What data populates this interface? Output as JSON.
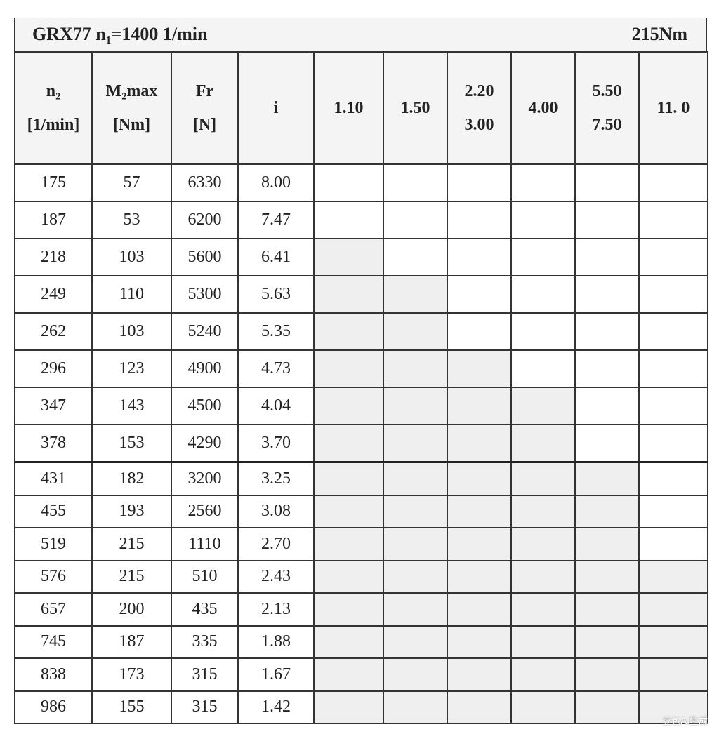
{
  "title": {
    "left": "GRX77 n₁=1400 1/min",
    "right": "215Nm"
  },
  "headers": [
    {
      "line1": "n₂",
      "line2": "[1/min]"
    },
    {
      "line1": "M₂max",
      "line2": "[Nm]"
    },
    {
      "line1": "Fr",
      "line2": "[N]"
    },
    {
      "line1": "i",
      "line2": ""
    },
    {
      "line1": "1.10",
      "line2": ""
    },
    {
      "line1": "1.50",
      "line2": ""
    },
    {
      "line1": "2.20",
      "line2": "3.00"
    },
    {
      "line1": "4.00",
      "line2": ""
    },
    {
      "line1": "5.50",
      "line2": "7.50"
    },
    {
      "line1": "11. 0",
      "line2": ""
    }
  ],
  "shade_color": "#efefef",
  "rows": [
    {
      "n2": "175",
      "m2": "57",
      "fr": "6330",
      "i": "8.00",
      "shaded_count": 0
    },
    {
      "n2": "187",
      "m2": "53",
      "fr": "6200",
      "i": "7.47",
      "shaded_count": 0
    },
    {
      "n2": "218",
      "m2": "103",
      "fr": "5600",
      "i": "6.41",
      "shaded_count": 1
    },
    {
      "n2": "249",
      "m2": "110",
      "fr": "5300",
      "i": "5.63",
      "shaded_count": 2
    },
    {
      "n2": "262",
      "m2": "103",
      "fr": "5240",
      "i": "5.35",
      "shaded_count": 2
    },
    {
      "n2": "296",
      "m2": "123",
      "fr": "4900",
      "i": "4.73",
      "shaded_count": 3
    },
    {
      "n2": "347",
      "m2": "143",
      "fr": "4500",
      "i": "4.04",
      "shaded_count": 4
    },
    {
      "n2": "378",
      "m2": "153",
      "fr": "4290",
      "i": "3.70",
      "shaded_count": 4
    },
    {
      "n2": "431",
      "m2": "182",
      "fr": "3200",
      "i": "3.25",
      "shaded_count": 5
    },
    {
      "n2": "455",
      "m2": "193",
      "fr": "2560",
      "i": "3.08",
      "shaded_count": 5
    },
    {
      "n2": "519",
      "m2": "215",
      "fr": "1110",
      "i": "2.70",
      "shaded_count": 5
    },
    {
      "n2": "576",
      "m2": "215",
      "fr": "510",
      "i": "2.43",
      "shaded_count": 6
    },
    {
      "n2": "657",
      "m2": "200",
      "fr": "435",
      "i": "2.13",
      "shaded_count": 6
    },
    {
      "n2": "745",
      "m2": "187",
      "fr": "335",
      "i": "1.88",
      "shaded_count": 6
    },
    {
      "n2": "838",
      "m2": "173",
      "fr": "315",
      "i": "1.67",
      "shaded_count": 6
    },
    {
      "n2": "986",
      "m2": "155",
      "fr": "315",
      "i": "1.42",
      "shaded_count": 6
    }
  ],
  "watermark": "豆包AI生成"
}
